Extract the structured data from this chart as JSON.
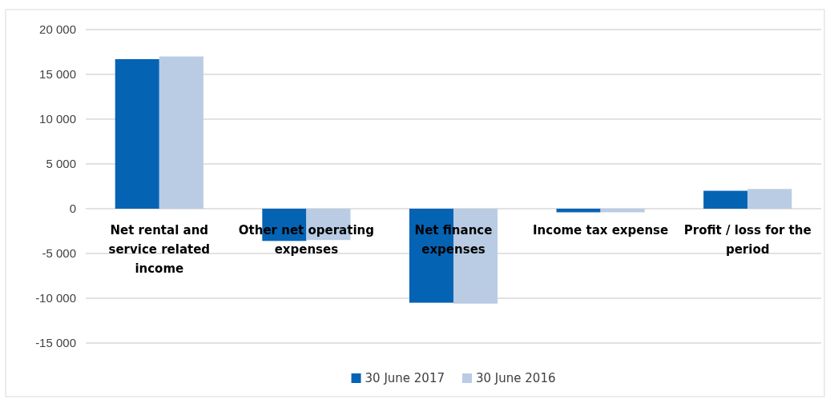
{
  "chart_data": {
    "type": "bar",
    "categories": [
      "Net rental and service related income",
      "Other net operating expenses",
      "Net finance expenses",
      "Income tax expense",
      "Profit / loss for the period"
    ],
    "series": [
      {
        "name": "30 June 2017",
        "color": "#0563b4",
        "values": [
          16700,
          -3600,
          -10500,
          -400,
          2000
        ]
      },
      {
        "name": "30 June 2016",
        "color": "#b9cce4",
        "values": [
          17000,
          -3500,
          -10600,
          -400,
          2200
        ]
      }
    ],
    "ylim": [
      -15000,
      20000
    ],
    "yticks": [
      {
        "value": -15000,
        "label": "-15 000"
      },
      {
        "value": -10000,
        "label": "-10 000"
      },
      {
        "value": -5000,
        "label": "-5 000"
      },
      0,
      {
        "value": 5000,
        "label": "5 000"
      },
      {
        "value": 10000,
        "label": "10 000"
      },
      {
        "value": 15000,
        "label": "15 000"
      },
      {
        "value": 20000,
        "label": "20 000"
      }
    ],
    "grid": "y",
    "legend": "bottom"
  }
}
